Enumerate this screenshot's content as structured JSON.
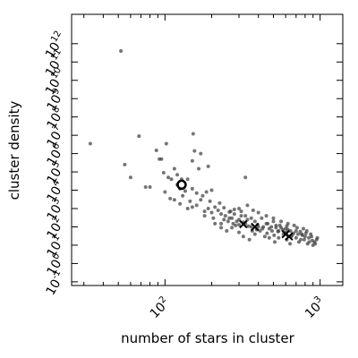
{
  "chart_data": {
    "type": "scatter",
    "xlabel": "number of stars in cluster",
    "ylabel": "cluster density",
    "x_scale": "log",
    "y_scale": "log",
    "xlim": [
      25,
      1400
    ],
    "ylim": [
      0.063,
      40000000000000
    ],
    "grid": false,
    "x_ticks": [
      {
        "base": "10",
        "exp": "2",
        "value": 100
      },
      {
        "base": "10",
        "exp": "3",
        "value": 1000
      }
    ],
    "y_ticks": [
      {
        "base": "10",
        "exp": "-1",
        "value": 0.1
      },
      {
        "base": "10",
        "exp": "0",
        "value": 1
      },
      {
        "base": "10",
        "exp": "1",
        "value": 10
      },
      {
        "base": "10",
        "exp": "2",
        "value": 100
      },
      {
        "base": "10",
        "exp": "3",
        "value": 1000
      },
      {
        "base": "10",
        "exp": "4",
        "value": 10000
      },
      {
        "base": "10",
        "exp": "5",
        "value": 100000
      },
      {
        "base": "10",
        "exp": "6",
        "value": 1000000
      },
      {
        "base": "10",
        "exp": "7",
        "value": 10000000
      },
      {
        "base": "10",
        "exp": "8",
        "value": 100000000
      },
      {
        "base": "10",
        "exp": "9",
        "value": 1000000000
      },
      {
        "base": "10",
        "exp": "10",
        "value": 10000000000
      },
      {
        "base": "10",
        "exp": "11",
        "value": 100000000000
      },
      {
        "base": "10",
        "exp": "12",
        "value": 1000000000000
      }
    ],
    "points": [
      [
        52,
        400000000000
      ],
      [
        33,
        3500000
      ],
      [
        68,
        9000000
      ],
      [
        55,
        250000
      ],
      [
        88,
        1500000
      ],
      [
        92,
        500000
      ],
      [
        95,
        500000
      ],
      [
        102,
        3500000
      ],
      [
        152,
        12000000
      ],
      [
        60,
        50000
      ],
      [
        98,
        90000
      ],
      [
        105,
        50000
      ],
      [
        75,
        15000
      ],
      [
        80,
        15000
      ],
      [
        115,
        150000
      ],
      [
        120,
        70000
      ],
      [
        128,
        40000
      ],
      [
        140,
        40000
      ],
      [
        155,
        1400000
      ],
      [
        165,
        150000
      ],
      [
        150,
        400000
      ],
      [
        110,
        40000
      ],
      [
        120,
        20000
      ],
      [
        100,
        8000
      ],
      [
        108,
        3500
      ],
      [
        130,
        5000
      ],
      [
        150,
        12000
      ],
      [
        170,
        3000
      ],
      [
        185,
        8000
      ],
      [
        115,
        3000
      ],
      [
        125,
        1800
      ],
      [
        140,
        1000
      ],
      [
        150,
        1200
      ],
      [
        160,
        1500
      ],
      [
        180,
        700
      ],
      [
        190,
        1000
      ],
      [
        200,
        600
      ],
      [
        210,
        1200
      ],
      [
        220,
        800
      ],
      [
        230,
        500
      ],
      [
        240,
        1100
      ],
      [
        260,
        650
      ],
      [
        270,
        300
      ],
      [
        280,
        500
      ],
      [
        290,
        200
      ],
      [
        300,
        1000
      ],
      [
        310,
        400
      ],
      [
        330,
        150
      ],
      [
        340,
        250
      ],
      [
        360,
        100
      ],
      [
        380,
        200
      ],
      [
        400,
        100
      ],
      [
        420,
        300
      ],
      [
        450,
        150
      ],
      [
        470,
        80
      ],
      [
        500,
        200
      ],
      [
        520,
        120
      ],
      [
        540,
        60
      ],
      [
        560,
        90
      ],
      [
        600,
        50
      ],
      [
        620,
        70
      ],
      [
        650,
        30
      ],
      [
        700,
        60
      ],
      [
        720,
        40
      ],
      [
        750,
        20
      ],
      [
        800,
        30
      ],
      [
        820,
        60
      ],
      [
        850,
        15
      ],
      [
        900,
        10
      ],
      [
        950,
        20
      ],
      [
        870,
        40
      ],
      [
        780,
        80
      ],
      [
        680,
        120
      ],
      [
        620,
        150
      ],
      [
        560,
        200
      ],
      [
        500,
        300
      ],
      [
        450,
        400
      ],
      [
        400,
        600
      ],
      [
        370,
        800
      ],
      [
        340,
        1500
      ],
      [
        310,
        700
      ],
      [
        280,
        900
      ],
      [
        260,
        300
      ],
      [
        240,
        250
      ],
      [
        230,
        150
      ],
      [
        250,
        60
      ],
      [
        270,
        90
      ],
      [
        300,
        50
      ],
      [
        320,
        30
      ],
      [
        350,
        20
      ],
      [
        380,
        40
      ],
      [
        410,
        60
      ],
      [
        440,
        30
      ],
      [
        470,
        25
      ],
      [
        510,
        15
      ],
      [
        540,
        25
      ],
      [
        580,
        40
      ],
      [
        610,
        20
      ],
      [
        640,
        12
      ],
      [
        660,
        35
      ],
      [
        700,
        25
      ],
      [
        730,
        15
      ],
      [
        760,
        40
      ],
      [
        790,
        20
      ],
      [
        830,
        12
      ],
      [
        880,
        30
      ],
      [
        920,
        15
      ],
      [
        960,
        25
      ],
      [
        600,
        80
      ],
      [
        550,
        120
      ],
      [
        520,
        90
      ],
      [
        490,
        60
      ],
      [
        460,
        150
      ],
      [
        430,
        100
      ],
      [
        390,
        70
      ],
      [
        360,
        300
      ],
      [
        330,
        400
      ],
      [
        300,
        250
      ],
      [
        285,
        120
      ],
      [
        265,
        700
      ],
      [
        245,
        400
      ],
      [
        225,
        2000
      ],
      [
        205,
        300
      ],
      [
        195,
        2500
      ],
      [
        175,
        5000
      ],
      [
        160,
        7000
      ],
      [
        145,
        2500
      ],
      [
        135,
        9000
      ],
      [
        125,
        12000
      ],
      [
        180,
        400
      ],
      [
        210,
        150
      ],
      [
        230,
        90
      ],
      [
        255,
        200
      ],
      [
        275,
        150
      ],
      [
        300,
        130
      ],
      [
        320,
        180
      ],
      [
        345,
        110
      ],
      [
        365,
        60
      ],
      [
        395,
        130
      ],
      [
        425,
        80
      ],
      [
        455,
        45
      ],
      [
        485,
        100
      ],
      [
        505,
        35
      ],
      [
        535,
        55
      ],
      [
        575,
        70
      ],
      [
        610,
        110
      ],
      [
        645,
        60
      ],
      [
        675,
        45
      ],
      [
        710,
        90
      ],
      [
        745,
        55
      ],
      [
        770,
        35
      ],
      [
        810,
        45
      ],
      [
        845,
        25
      ],
      [
        890,
        18
      ],
      [
        930,
        12
      ],
      [
        200,
        10000
      ],
      [
        190,
        200000
      ],
      [
        170,
        1000000
      ],
      [
        330,
        50000
      ]
    ],
    "highlight": {
      "x": 128,
      "y": 20000
    },
    "markers": [
      {
        "x": 600,
        "y": 40
      },
      {
        "x": 320,
        "y": 140
      },
      {
        "x": 380,
        "y": 100
      },
      {
        "x": 630,
        "y": 30
      }
    ]
  }
}
